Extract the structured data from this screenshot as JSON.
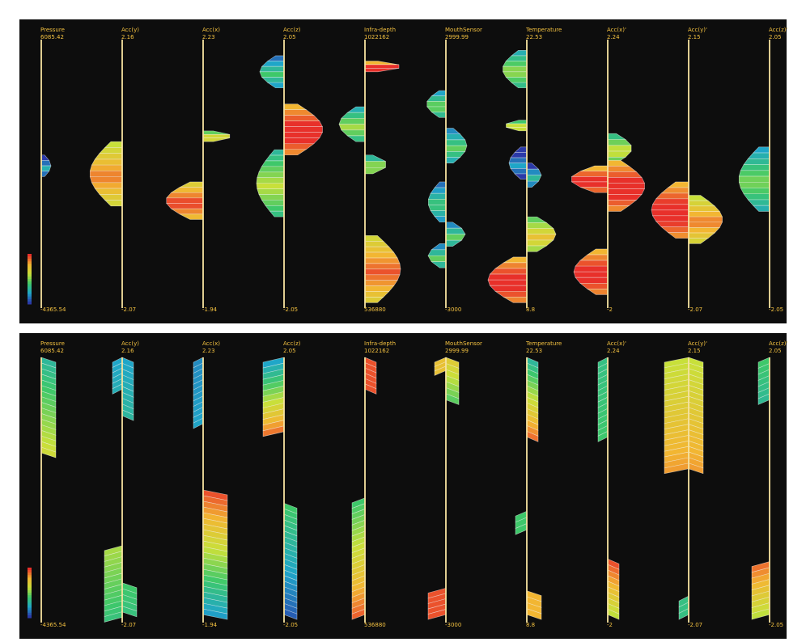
{
  "chart_data": [
    {
      "type": "parallel-axes-histogram",
      "title": "",
      "axes": [
        {
          "name": "Pressure",
          "max": "6085.42",
          "min": "-4365.54"
        },
        {
          "name": "Acc(y)",
          "max": "2.16",
          "min": "-2.07"
        },
        {
          "name": "Acc(x)",
          "max": "2.23",
          "min": "-1.94"
        },
        {
          "name": "Acc(z)",
          "max": "2.05",
          "min": "-2.05"
        },
        {
          "name": "Infra-depth",
          "max": "1022162",
          "min": "536880"
        },
        {
          "name": "MouthSensor",
          "max": "2999.99",
          "min": "-3000"
        },
        {
          "name": "Temperature",
          "max": "22.53",
          "min": "8.8"
        },
        {
          "name": "Acc(x)'",
          "max": "2.24",
          "min": "-2"
        },
        {
          "name": "Acc(y)'",
          "max": "2.15",
          "min": "-2.07"
        },
        {
          "name": "Acc(z)'",
          "max": "2.05",
          "min": "-2.05"
        }
      ],
      "color_scale": [
        "#2b3aa8",
        "#1fa6c8",
        "#3ec86a",
        "#c8e03a",
        "#f2b632",
        "#e8302a"
      ],
      "distributions": [
        [
          {
            "lo": 0.43,
            "hi": 0.51,
            "side": 1,
            "w": 12,
            "c": 0.1
          }
        ],
        [
          {
            "lo": 0.38,
            "hi": 0.62,
            "side": -1,
            "w": 40,
            "c": 0.75
          }
        ],
        [
          {
            "lo": 0.34,
            "hi": 0.38,
            "side": 1,
            "w": 36,
            "c": 0.6
          },
          {
            "lo": 0.53,
            "hi": 0.67,
            "side": -1,
            "w": 46,
            "c": 0.85
          }
        ],
        [
          {
            "lo": 0.06,
            "hi": 0.18,
            "side": -1,
            "w": 30,
            "c": 0.25
          },
          {
            "lo": 0.24,
            "hi": 0.43,
            "side": 1,
            "w": 48,
            "c": 0.95
          },
          {
            "lo": 0.41,
            "hi": 0.66,
            "side": -1,
            "w": 34,
            "c": 0.45
          }
        ],
        [
          {
            "lo": 0.08,
            "hi": 0.12,
            "side": 1,
            "w": 46,
            "c": 0.95
          },
          {
            "lo": 0.25,
            "hi": 0.38,
            "side": -1,
            "w": 32,
            "c": 0.4
          },
          {
            "lo": 0.43,
            "hi": 0.5,
            "side": 1,
            "w": 28,
            "c": 0.45
          },
          {
            "lo": 0.73,
            "hi": 0.98,
            "side": 1,
            "w": 44,
            "c": 0.8
          }
        ],
        [
          {
            "lo": 0.19,
            "hi": 0.29,
            "side": -1,
            "w": 24,
            "c": 0.35
          },
          {
            "lo": 0.33,
            "hi": 0.46,
            "side": 1,
            "w": 26,
            "c": 0.3
          },
          {
            "lo": 0.53,
            "hi": 0.68,
            "side": -1,
            "w": 22,
            "c": 0.25
          },
          {
            "lo": 0.68,
            "hi": 0.77,
            "side": 1,
            "w": 24,
            "c": 0.3
          },
          {
            "lo": 0.76,
            "hi": 0.85,
            "side": -1,
            "w": 22,
            "c": 0.3
          }
        ],
        [
          {
            "lo": 0.04,
            "hi": 0.18,
            "side": -1,
            "w": 30,
            "c": 0.4
          },
          {
            "lo": 0.3,
            "hi": 0.34,
            "side": -1,
            "w": 28,
            "c": 0.55
          },
          {
            "lo": 0.4,
            "hi": 0.52,
            "side": -1,
            "w": 22,
            "c": 0.05
          },
          {
            "lo": 0.46,
            "hi": 0.55,
            "side": 1,
            "w": 18,
            "c": 0.15
          },
          {
            "lo": 0.66,
            "hi": 0.79,
            "side": 1,
            "w": 36,
            "c": 0.6
          },
          {
            "lo": 0.81,
            "hi": 0.98,
            "side": -1,
            "w": 48,
            "c": 0.95
          }
        ],
        [
          {
            "lo": 0.35,
            "hi": 0.46,
            "side": 1,
            "w": 30,
            "c": 0.5
          },
          {
            "lo": 0.45,
            "hi": 0.64,
            "side": 1,
            "w": 46,
            "c": 0.95
          },
          {
            "lo": 0.47,
            "hi": 0.57,
            "side": -1,
            "w": 46,
            "c": 0.95
          },
          {
            "lo": 0.78,
            "hi": 0.95,
            "side": -1,
            "w": 42,
            "c": 0.95
          }
        ],
        [
          {
            "lo": 0.53,
            "hi": 0.74,
            "side": -1,
            "w": 46,
            "c": 0.95
          },
          {
            "lo": 0.58,
            "hi": 0.76,
            "side": 1,
            "w": 42,
            "c": 0.75
          }
        ],
        [
          {
            "lo": 0.4,
            "hi": 0.64,
            "side": -1,
            "w": 38,
            "c": 0.35
          }
        ]
      ]
    },
    {
      "type": "parallel-axes-trend",
      "title": "",
      "axes": [
        {
          "name": "Pressure",
          "max": "6085.42",
          "min": "-4365.54"
        },
        {
          "name": "Acc(y)",
          "max": "2.16",
          "min": "-2.07"
        },
        {
          "name": "Acc(x)",
          "max": "2.23",
          "min": "-1.94"
        },
        {
          "name": "Acc(z)",
          "max": "2.05",
          "min": "-2.05"
        },
        {
          "name": "Infra-depth",
          "max": "1022162",
          "min": "536880"
        },
        {
          "name": "MouthSensor",
          "max": "2999.99",
          "min": "-3000"
        },
        {
          "name": "Temperature",
          "max": "22.53",
          "min": "8.8"
        },
        {
          "name": "Acc(x)'",
          "max": "2.24",
          "min": "-2"
        },
        {
          "name": "Acc(y)'",
          "max": "2.15",
          "min": "-2.07"
        },
        {
          "name": "Acc(z)'",
          "max": "2.05",
          "min": "-2.05"
        }
      ],
      "color_scale": [
        "#2b3aa8",
        "#1fa6c8",
        "#3ec86a",
        "#c8e03a",
        "#f2b632",
        "#e8302a"
      ],
      "segments": [
        [
          {
            "lo": 0.0,
            "hi": 0.36,
            "side": 1,
            "w": 18,
            "c0": 0.3,
            "c1": 0.65
          }
        ],
        [
          {
            "lo": 0.0,
            "hi": 0.22,
            "side": 1,
            "w": 14,
            "c0": 0.2,
            "c1": 0.3
          },
          {
            "lo": 0.0,
            "hi": 0.12,
            "side": -1,
            "w": 12,
            "c0": 0.2,
            "c1": 0.25
          },
          {
            "lo": 0.71,
            "hi": 0.98,
            "side": -1,
            "w": 22,
            "c0": 0.55,
            "c1": 0.35
          },
          {
            "lo": 0.85,
            "hi": 0.96,
            "side": 1,
            "w": 18,
            "c0": 0.4,
            "c1": 0.35
          }
        ],
        [
          {
            "lo": 0.0,
            "hi": 0.25,
            "side": -1,
            "w": 12,
            "c0": 0.15,
            "c1": 0.2
          },
          {
            "lo": 0.5,
            "hi": 0.97,
            "side": 1,
            "w": 30,
            "c0": 0.95,
            "c1": 0.15
          }
        ],
        [
          {
            "lo": 0.0,
            "hi": 0.28,
            "side": -1,
            "w": 26,
            "c0": 0.2,
            "c1": 0.95
          },
          {
            "lo": 0.55,
            "hi": 0.97,
            "side": 1,
            "w": 16,
            "c0": 0.4,
            "c1": 0.05
          }
        ],
        [
          {
            "lo": 0.0,
            "hi": 0.12,
            "side": 1,
            "w": 14,
            "c0": 0.95,
            "c1": 0.95
          },
          {
            "lo": 0.53,
            "hi": 0.97,
            "side": -1,
            "w": 16,
            "c0": 0.4,
            "c1": 0.95
          }
        ],
        [
          {
            "lo": 0.0,
            "hi": 0.16,
            "side": 1,
            "w": 16,
            "c0": 0.7,
            "c1": 0.4
          },
          {
            "lo": 0.0,
            "hi": 0.05,
            "side": -1,
            "w": 14,
            "c0": 0.75,
            "c1": 0.75
          },
          {
            "lo": 0.87,
            "hi": 0.97,
            "side": -1,
            "w": 22,
            "c0": 0.95,
            "c1": 0.95
          }
        ],
        [
          {
            "lo": 0.0,
            "hi": 0.3,
            "side": 1,
            "w": 14,
            "c0": 0.3,
            "c1": 0.95
          },
          {
            "lo": 0.58,
            "hi": 0.65,
            "side": -1,
            "w": 14,
            "c0": 0.4,
            "c1": 0.4
          },
          {
            "lo": 0.88,
            "hi": 0.97,
            "side": 1,
            "w": 18,
            "c0": 0.8,
            "c1": 0.8
          }
        ],
        [
          {
            "lo": 0.0,
            "hi": 0.3,
            "side": -1,
            "w": 12,
            "c0": 0.35,
            "c1": 0.4
          },
          {
            "lo": 0.76,
            "hi": 0.97,
            "side": 1,
            "w": 14,
            "c0": 0.95,
            "c1": 0.55
          }
        ],
        [
          {
            "lo": 0.0,
            "hi": 0.42,
            "side": -1,
            "w": 30,
            "c0": 0.6,
            "c1": 0.85
          },
          {
            "lo": 0.0,
            "hi": 0.42,
            "side": 1,
            "w": 18,
            "c0": 0.6,
            "c1": 0.85
          },
          {
            "lo": 0.9,
            "hi": 0.97,
            "side": -1,
            "w": 12,
            "c0": 0.35,
            "c1": 0.35
          }
        ],
        [
          {
            "lo": 0.0,
            "hi": 0.16,
            "side": -1,
            "w": 14,
            "c0": 0.4,
            "c1": 0.3
          },
          {
            "lo": 0.77,
            "hi": 0.97,
            "side": -1,
            "w": 22,
            "c0": 0.9,
            "c1": 0.55
          }
        ]
      ]
    }
  ]
}
